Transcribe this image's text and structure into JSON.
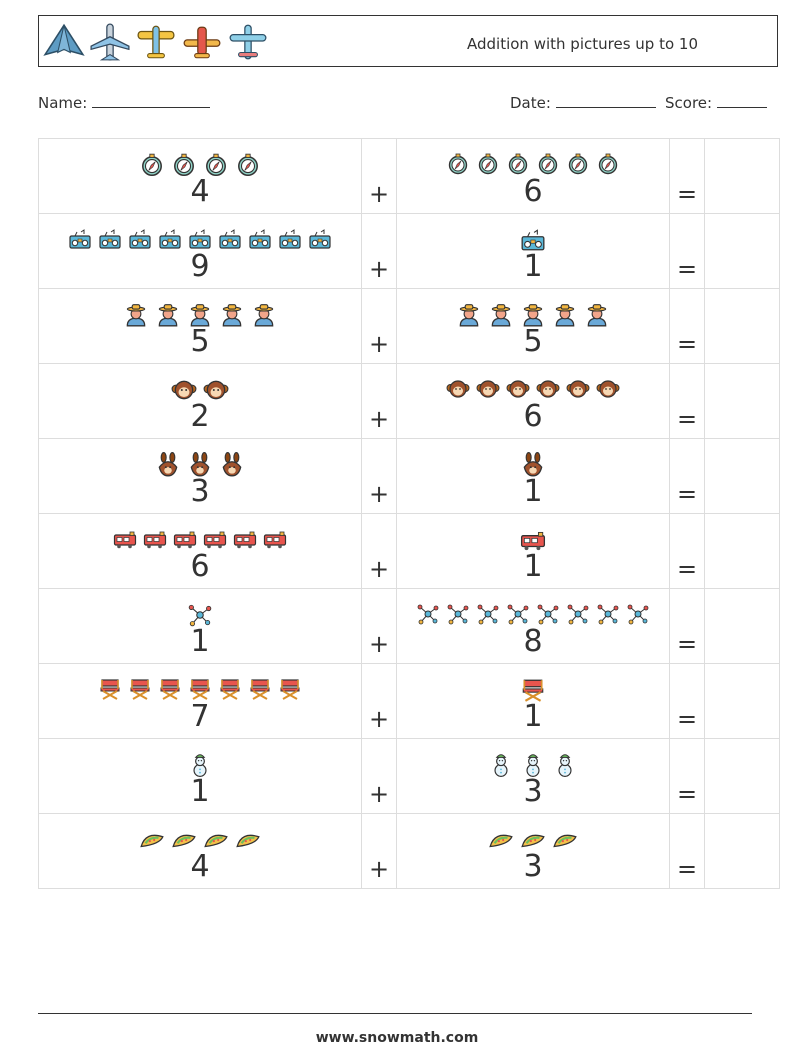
{
  "header": {
    "title": "Addition with pictures up to 10",
    "icons": [
      "stealth-plane-icon",
      "airliner-icon",
      "yellow-biplane-icon",
      "red-biplane-icon",
      "cyan-plane-icon"
    ]
  },
  "fields": {
    "name_label": "Name:",
    "date_label": "Date:",
    "score_label": "Score:"
  },
  "problems": [
    {
      "a": 4,
      "b": 6,
      "icon_a": "compass-icon",
      "icon_b": "compass-icon"
    },
    {
      "a": 9,
      "b": 1,
      "icon_a": "radio-icon",
      "icon_b": "radio-icon"
    },
    {
      "a": 5,
      "b": 5,
      "icon_a": "farmer-icon",
      "icon_b": "farmer-icon"
    },
    {
      "a": 2,
      "b": 6,
      "icon_a": "monkey-icon",
      "icon_b": "monkey-icon"
    },
    {
      "a": 3,
      "b": 1,
      "icon_a": "squirrel-icon",
      "icon_b": "squirrel-icon"
    },
    {
      "a": 6,
      "b": 1,
      "icon_a": "train-icon",
      "icon_b": "train-icon"
    },
    {
      "a": 1,
      "b": 8,
      "icon_a": "molecule-icon",
      "icon_b": "molecule-icon"
    },
    {
      "a": 7,
      "b": 1,
      "icon_a": "director-chair-icon",
      "icon_b": "director-chair-icon"
    },
    {
      "a": 1,
      "b": 3,
      "icon_a": "snowman-icon",
      "icon_b": "snowman-icon"
    },
    {
      "a": 4,
      "b": 3,
      "icon_a": "taco-icon",
      "icon_b": "taco-icon"
    }
  ],
  "operators": {
    "plus": "+",
    "equals": "="
  },
  "footer": {
    "website": "www.snowmath.com"
  }
}
